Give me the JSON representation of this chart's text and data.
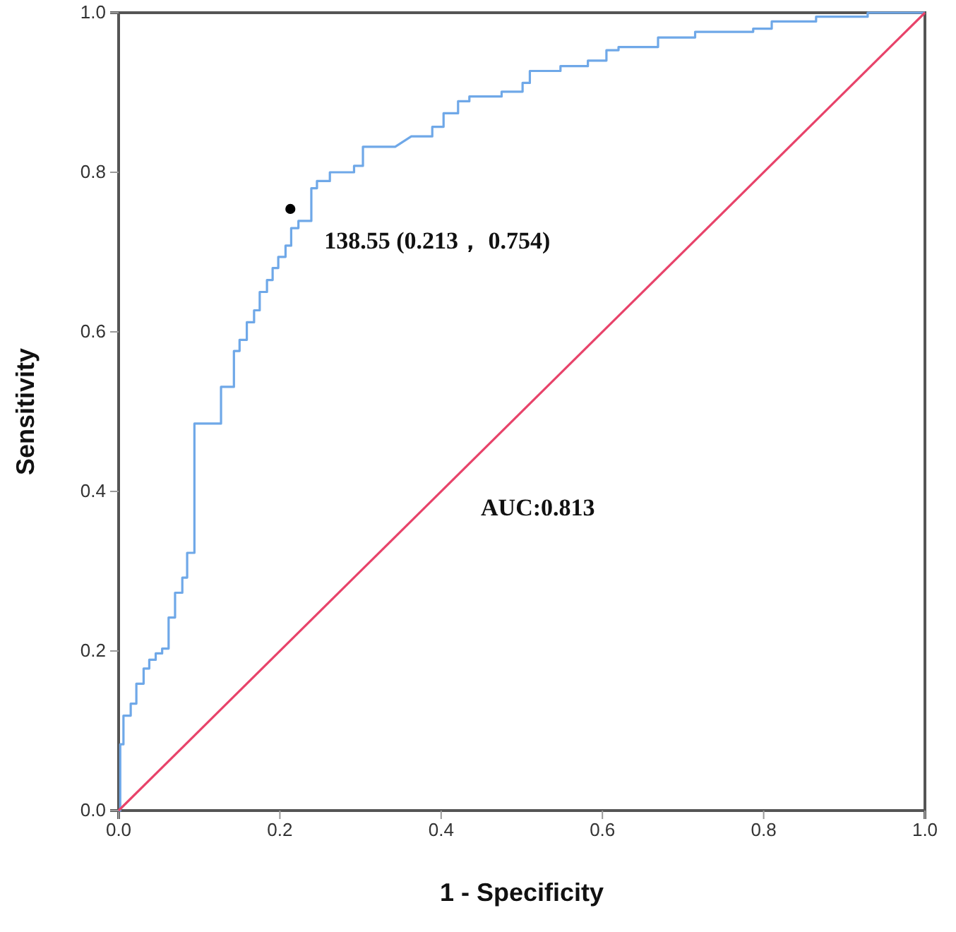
{
  "chart_data": {
    "type": "line",
    "xlabel": "1 - Specificity",
    "ylabel": "Sensitivity",
    "xlim": [
      0,
      1
    ],
    "ylim": [
      0,
      1
    ],
    "xticks": [
      {
        "value": 0,
        "label": "0.0"
      },
      0.2,
      0.4,
      0.6,
      0.8,
      {
        "value": 1,
        "label": "1.0"
      }
    ],
    "yticks": [
      {
        "value": 0,
        "label": "0.0"
      },
      0.2,
      0.4,
      0.6,
      0.8,
      {
        "value": 1,
        "label": "1.0"
      }
    ],
    "grid": false,
    "marker": "none",
    "line_style": "solid",
    "series": [
      {
        "color": "#6fa8e8",
        "x": [
          0,
          0.002,
          0.002,
          0.006,
          0.006,
          0.015,
          0.015,
          0.022,
          0.022,
          0.031,
          0.031,
          0.038,
          0.038,
          0.046,
          0.046,
          0.054,
          0.054,
          0.062,
          0.062,
          0.07,
          0.07,
          0.079,
          0.079,
          0.085,
          0.085,
          0.094,
          0.094,
          0.127,
          0.127,
          0.143,
          0.143,
          0.15,
          0.15,
          0.159,
          0.159,
          0.168,
          0.168,
          0.175,
          0.175,
          0.184,
          0.184,
          0.191,
          0.191,
          0.198,
          0.198,
          0.207,
          0.207,
          0.214,
          0.214,
          0.223,
          0.223,
          0.239,
          0.239,
          0.246,
          0.246,
          0.262,
          0.262,
          0.292,
          0.292,
          0.303,
          0.303,
          0.343,
          0.363,
          0.389,
          0.389,
          0.403,
          0.403,
          0.421,
          0.421,
          0.435,
          0.435,
          0.475,
          0.475,
          0.501,
          0.501,
          0.51,
          0.51,
          0.548,
          0.548,
          0.582,
          0.582,
          0.605,
          0.605,
          0.62,
          0.62,
          0.669,
          0.669,
          0.715,
          0.715,
          0.787,
          0.787,
          0.81,
          0.81,
          0.865,
          0.865,
          0.929,
          0.929,
          1
        ],
        "values": [
          0,
          0,
          0.083,
          0.083,
          0.119,
          0.119,
          0.134,
          0.134,
          0.159,
          0.159,
          0.178,
          0.178,
          0.189,
          0.189,
          0.197,
          0.197,
          0.203,
          0.203,
          0.242,
          0.242,
          0.273,
          0.273,
          0.292,
          0.292,
          0.323,
          0.323,
          0.485,
          0.485,
          0.531,
          0.531,
          0.576,
          0.576,
          0.59,
          0.59,
          0.612,
          0.612,
          0.627,
          0.627,
          0.65,
          0.65,
          0.665,
          0.665,
          0.68,
          0.68,
          0.694,
          0.694,
          0.708,
          0.708,
          0.73,
          0.73,
          0.739,
          0.739,
          0.78,
          0.78,
          0.789,
          0.789,
          0.8,
          0.8,
          0.808,
          0.808,
          0.832,
          0.832,
          0.845,
          0.845,
          0.857,
          0.857,
          0.874,
          0.874,
          0.889,
          0.889,
          0.895,
          0.895,
          0.901,
          0.901,
          0.912,
          0.912,
          0.927,
          0.927,
          0.933,
          0.933,
          0.94,
          0.94,
          0.953,
          0.953,
          0.957,
          0.957,
          0.969,
          0.969,
          0.976,
          0.976,
          0.98,
          0.98,
          0.989,
          0.989,
          0.995,
          0.995,
          1,
          1
        ]
      },
      {
        "color": "#e8436a",
        "x": [
          0,
          1
        ],
        "values": [
          0,
          1
        ]
      },
      {
        "type": "scatter",
        "color": "#000000",
        "marker": "circle",
        "x": [
          0.213
        ],
        "values": [
          0.754
        ]
      }
    ],
    "annotations": [
      {
        "text": "138.55 (0.213， 0.754)",
        "x": 0.213,
        "y": 0.754
      },
      "AUC:0.813"
    ]
  }
}
